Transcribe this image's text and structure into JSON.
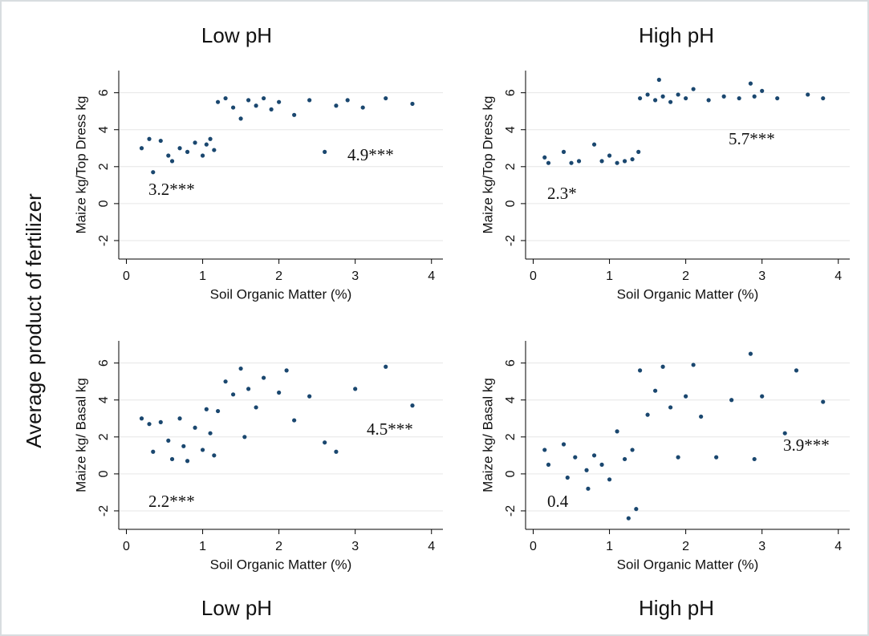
{
  "y_title": "Average product of fertilizer",
  "top_labels": [
    "Low pH",
    "High pH"
  ],
  "bottom_labels": [
    "Low pH",
    "High pH"
  ],
  "chart_data": [
    {
      "type": "scatter",
      "xlabel": "Soil Organic Matter (%)",
      "ylabel": "Maize kg/Top Dress kg",
      "color": "#1a476f",
      "grid": true,
      "annotations": [
        "3.2***",
        "4.9***"
      ],
      "xlim": [
        -0.1,
        4.15
      ],
      "xticks": [
        0,
        1,
        2,
        3,
        4
      ],
      "ylim": [
        -3,
        7.2
      ],
      "yticks": [
        -2,
        0,
        2,
        4,
        6
      ],
      "x": [
        0.2,
        0.3,
        0.35,
        0.45,
        0.55,
        0.6,
        0.7,
        0.8,
        0.9,
        1.0,
        1.05,
        1.1,
        1.15,
        1.2,
        1.3,
        1.4,
        1.5,
        1.6,
        1.7,
        1.8,
        1.9,
        2.0,
        2.2,
        2.4,
        2.6,
        2.75,
        2.9,
        3.1,
        3.4,
        3.75
      ],
      "values": [
        3.0,
        3.5,
        1.7,
        3.4,
        2.6,
        2.3,
        3.0,
        2.8,
        3.3,
        2.6,
        3.2,
        3.5,
        2.9,
        5.5,
        5.7,
        5.2,
        4.6,
        5.6,
        5.3,
        5.7,
        5.1,
        5.5,
        4.8,
        5.6,
        2.8,
        5.3,
        5.6,
        5.2,
        5.7,
        5.4
      ]
    },
    {
      "type": "scatter",
      "xlabel": "Soil Organic Matter (%)",
      "ylabel": "Maize kg/Top Dress kg",
      "color": "#1a476f",
      "grid": true,
      "annotations": [
        "2.3*",
        "5.7***"
      ],
      "xlim": [
        -0.1,
        4.15
      ],
      "xticks": [
        0,
        1,
        2,
        3,
        4
      ],
      "ylim": [
        -3,
        7.2
      ],
      "yticks": [
        -2,
        0,
        2,
        4,
        6
      ],
      "x": [
        0.15,
        0.2,
        0.4,
        0.5,
        0.6,
        0.8,
        0.9,
        1.0,
        1.1,
        1.2,
        1.3,
        1.38,
        1.4,
        1.5,
        1.6,
        1.65,
        1.7,
        1.8,
        1.9,
        2.0,
        2.1,
        2.3,
        2.5,
        2.7,
        2.85,
        2.9,
        3.0,
        3.2,
        3.6,
        3.8
      ],
      "values": [
        2.5,
        2.2,
        2.8,
        2.2,
        2.3,
        3.2,
        2.3,
        2.6,
        2.2,
        2.3,
        2.4,
        2.8,
        5.7,
        5.9,
        5.6,
        6.7,
        5.8,
        5.5,
        5.9,
        5.7,
        6.2,
        5.6,
        5.8,
        5.7,
        6.5,
        5.8,
        6.1,
        5.7,
        5.9,
        5.7
      ]
    },
    {
      "type": "scatter",
      "xlabel": "Soil Organic Matter (%)",
      "ylabel": "Maize kg/ Basal kg",
      "color": "#1a476f",
      "grid": true,
      "annotations": [
        "2.2***",
        "4.5***"
      ],
      "xlim": [
        -0.1,
        4.15
      ],
      "xticks": [
        0,
        1,
        2,
        3,
        4
      ],
      "ylim": [
        -3,
        7.2
      ],
      "yticks": [
        -2,
        0,
        2,
        4,
        6
      ],
      "x": [
        0.2,
        0.3,
        0.35,
        0.45,
        0.55,
        0.6,
        0.7,
        0.75,
        0.8,
        0.9,
        1.0,
        1.05,
        1.1,
        1.15,
        1.2,
        1.3,
        1.4,
        1.5,
        1.55,
        1.6,
        1.7,
        1.8,
        2.0,
        2.1,
        2.2,
        2.4,
        2.6,
        2.75,
        3.0,
        3.4,
        3.75
      ],
      "values": [
        3.0,
        2.7,
        1.2,
        2.8,
        1.8,
        0.8,
        3.0,
        1.5,
        0.7,
        2.5,
        1.3,
        3.5,
        2.2,
        1.0,
        3.4,
        5.0,
        4.3,
        5.7,
        2.0,
        4.6,
        3.6,
        5.2,
        4.4,
        5.6,
        2.9,
        4.2,
        1.7,
        1.2,
        4.6,
        5.8,
        3.7
      ]
    },
    {
      "type": "scatter",
      "xlabel": "Soil Organic Matter (%)",
      "ylabel": "Maize kg/ Basal kg",
      "color": "#1a476f",
      "grid": true,
      "annotations": [
        "0.4",
        "3.9***"
      ],
      "xlim": [
        -0.1,
        4.15
      ],
      "xticks": [
        0,
        1,
        2,
        3,
        4
      ],
      "ylim": [
        -3,
        7.2
      ],
      "yticks": [
        -2,
        0,
        2,
        4,
        6
      ],
      "x": [
        0.15,
        0.2,
        0.4,
        0.45,
        0.55,
        0.7,
        0.72,
        0.8,
        0.9,
        1.0,
        1.1,
        1.2,
        1.25,
        1.3,
        1.35,
        1.4,
        1.5,
        1.6,
        1.7,
        1.8,
        1.9,
        2.0,
        2.1,
        2.2,
        2.4,
        2.6,
        2.85,
        2.9,
        3.0,
        3.3,
        3.45,
        3.8
      ],
      "values": [
        1.3,
        0.5,
        1.6,
        -0.2,
        0.9,
        0.2,
        -0.8,
        1.0,
        0.5,
        -0.3,
        2.3,
        0.8,
        -2.4,
        1.3,
        -1.9,
        5.6,
        3.2,
        4.5,
        5.8,
        3.6,
        0.9,
        4.2,
        5.9,
        3.1,
        0.9,
        4.0,
        6.5,
        0.8,
        4.2,
        2.2,
        5.6,
        3.9
      ]
    }
  ]
}
